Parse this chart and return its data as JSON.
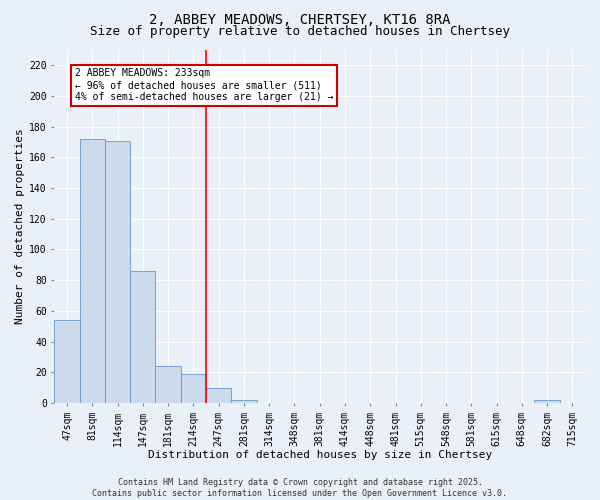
{
  "title_line1": "2, ABBEY MEADOWS, CHERTSEY, KT16 8RA",
  "title_line2": "Size of property relative to detached houses in Chertsey",
  "xlabel": "Distribution of detached houses by size in Chertsey",
  "ylabel": "Number of detached properties",
  "footer": "Contains HM Land Registry data © Crown copyright and database right 2025.\nContains public sector information licensed under the Open Government Licence v3.0.",
  "bin_labels": [
    "47sqm",
    "81sqm",
    "114sqm",
    "147sqm",
    "181sqm",
    "214sqm",
    "247sqm",
    "281sqm",
    "314sqm",
    "348sqm",
    "381sqm",
    "414sqm",
    "448sqm",
    "481sqm",
    "515sqm",
    "548sqm",
    "581sqm",
    "615sqm",
    "648sqm",
    "682sqm",
    "715sqm"
  ],
  "bar_values": [
    54,
    172,
    171,
    86,
    24,
    19,
    10,
    2,
    0,
    0,
    0,
    0,
    0,
    0,
    0,
    0,
    0,
    0,
    0,
    2,
    0
  ],
  "bar_color": "#ccdaec",
  "bar_edge_color": "#6699cc",
  "red_line_x": 5.5,
  "annotation_text": "2 ABBEY MEADOWS: 233sqm\n← 96% of detached houses are smaller (511)\n4% of semi-detached houses are larger (21) →",
  "annotation_box_color": "#ffffff",
  "annotation_box_edge": "#cc0000",
  "ylim": [
    0,
    230
  ],
  "yticks": [
    0,
    20,
    40,
    60,
    80,
    100,
    120,
    140,
    160,
    180,
    200,
    220
  ],
  "background_color": "#eaf0f8",
  "plot_background": "#eaf0f8",
  "grid_color": "#ffffff",
  "title_fontsize": 10,
  "subtitle_fontsize": 9,
  "axis_label_fontsize": 8,
  "tick_fontsize": 7,
  "annotation_fontsize": 7,
  "footer_fontsize": 6
}
